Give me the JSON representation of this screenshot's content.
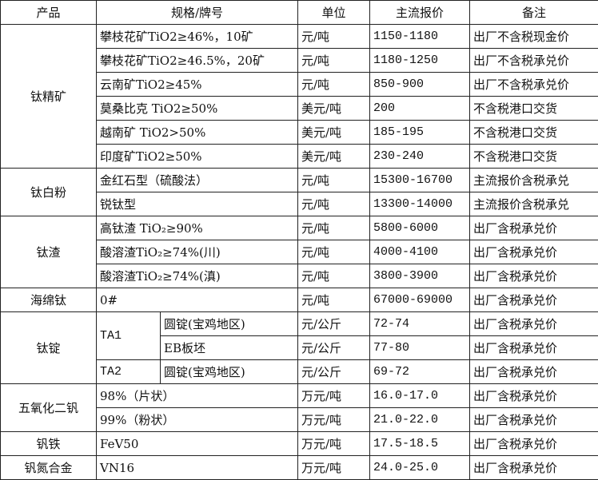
{
  "header": [
    "产品",
    "规格/牌号",
    "单位",
    "主流报价",
    "备注"
  ],
  "groups": [
    {
      "product": "钛精矿",
      "rows": [
        {
          "spec": "攀枝花矿TiO2≥46%，10矿",
          "unit": "元/吨",
          "price": "1150-1180",
          "note": "出厂不含税现金价"
        },
        {
          "spec": "攀枝花矿TiO2≥46.5%，20矿",
          "unit": "元/吨",
          "price": "1180-1250",
          "note": "出厂不含税承兑价"
        },
        {
          "spec": "云南矿TiO2≥45%",
          "unit": "元/吨",
          "price": "850-900",
          "note": "出厂不含税承兑价"
        },
        {
          "spec": "莫桑比克 TiO2≥50%",
          "unit": "美元/吨",
          "price": "200",
          "note": "不含税港口交货"
        },
        {
          "spec": "越南矿 TiO2>50%",
          "unit": "美元/吨",
          "price": "185-195",
          "note": "不含税港口交货"
        },
        {
          "spec": "印度矿TiO2≥50%",
          "unit": "美元/吨",
          "price": "230-240",
          "note": "不含税港口交货"
        }
      ]
    },
    {
      "product": "钛白粉",
      "rows": [
        {
          "spec": "金红石型（硫酸法）",
          "unit": "元/吨",
          "price": "15300-16700",
          "note": "主流报价含税承兑"
        },
        {
          "spec": "锐钛型",
          "unit": "元/吨",
          "price": "13300-14000",
          "note": "主流报价含税承兑"
        }
      ]
    },
    {
      "product": "钛渣",
      "rows": [
        {
          "spec": "高钛渣 TiO₂≥90%",
          "unit": "元/吨",
          "price": "5800-6000",
          "note": "出厂含税承兑价"
        },
        {
          "spec": "酸溶渣TiO₂≥74%(川)",
          "unit": "元/吨",
          "price": "4000-4100",
          "note": "出厂含税承兑价"
        },
        {
          "spec": "酸溶渣TiO₂≥74%(滇)",
          "unit": "元/吨",
          "price": "3800-3900",
          "note": "出厂含税承兑价"
        }
      ]
    },
    {
      "product": "海绵钛",
      "rows": [
        {
          "spec": "0#",
          "unit": "元/吨",
          "price": "67000-69000",
          "note": "出厂含税承兑价"
        }
      ]
    },
    {
      "product": "钛锭",
      "rows": [
        {
          "grade": "TA1",
          "gradeSpan": 2,
          "spec": "圆锭(宝鸡地区)",
          "unit": "元/公斤",
          "price": "72-74",
          "note": "出厂含税承兑价"
        },
        {
          "spec": "EB板坯",
          "unit": "元/公斤",
          "price": "77-80",
          "note": "出厂含税承兑价"
        },
        {
          "grade": "TA2",
          "gradeSpan": 1,
          "spec": "圆锭(宝鸡地区)",
          "unit": "元/公斤",
          "price": "69-72",
          "note": "出厂含税承兑价"
        }
      ]
    },
    {
      "product": "五氧化二钒",
      "rows": [
        {
          "spec": "98%（片状）",
          "unit": "万元/吨",
          "price": "16.0-17.0",
          "note": "出厂含税承兑价"
        },
        {
          "spec": "99%（粉状）",
          "unit": "万元/吨",
          "price": "21.0-22.0",
          "note": "出厂含税承兑价"
        }
      ]
    },
    {
      "product": "钒铁",
      "rows": [
        {
          "spec": "FeV50",
          "unit": "万元/吨",
          "price": "17.5-18.5",
          "note": "出厂含税承兑价"
        }
      ]
    },
    {
      "product": "钒氮合金",
      "rows": [
        {
          "spec": "VN16",
          "unit": "万元/吨",
          "price": "24.0-25.0",
          "note": "出厂含税承兑价"
        }
      ]
    }
  ]
}
